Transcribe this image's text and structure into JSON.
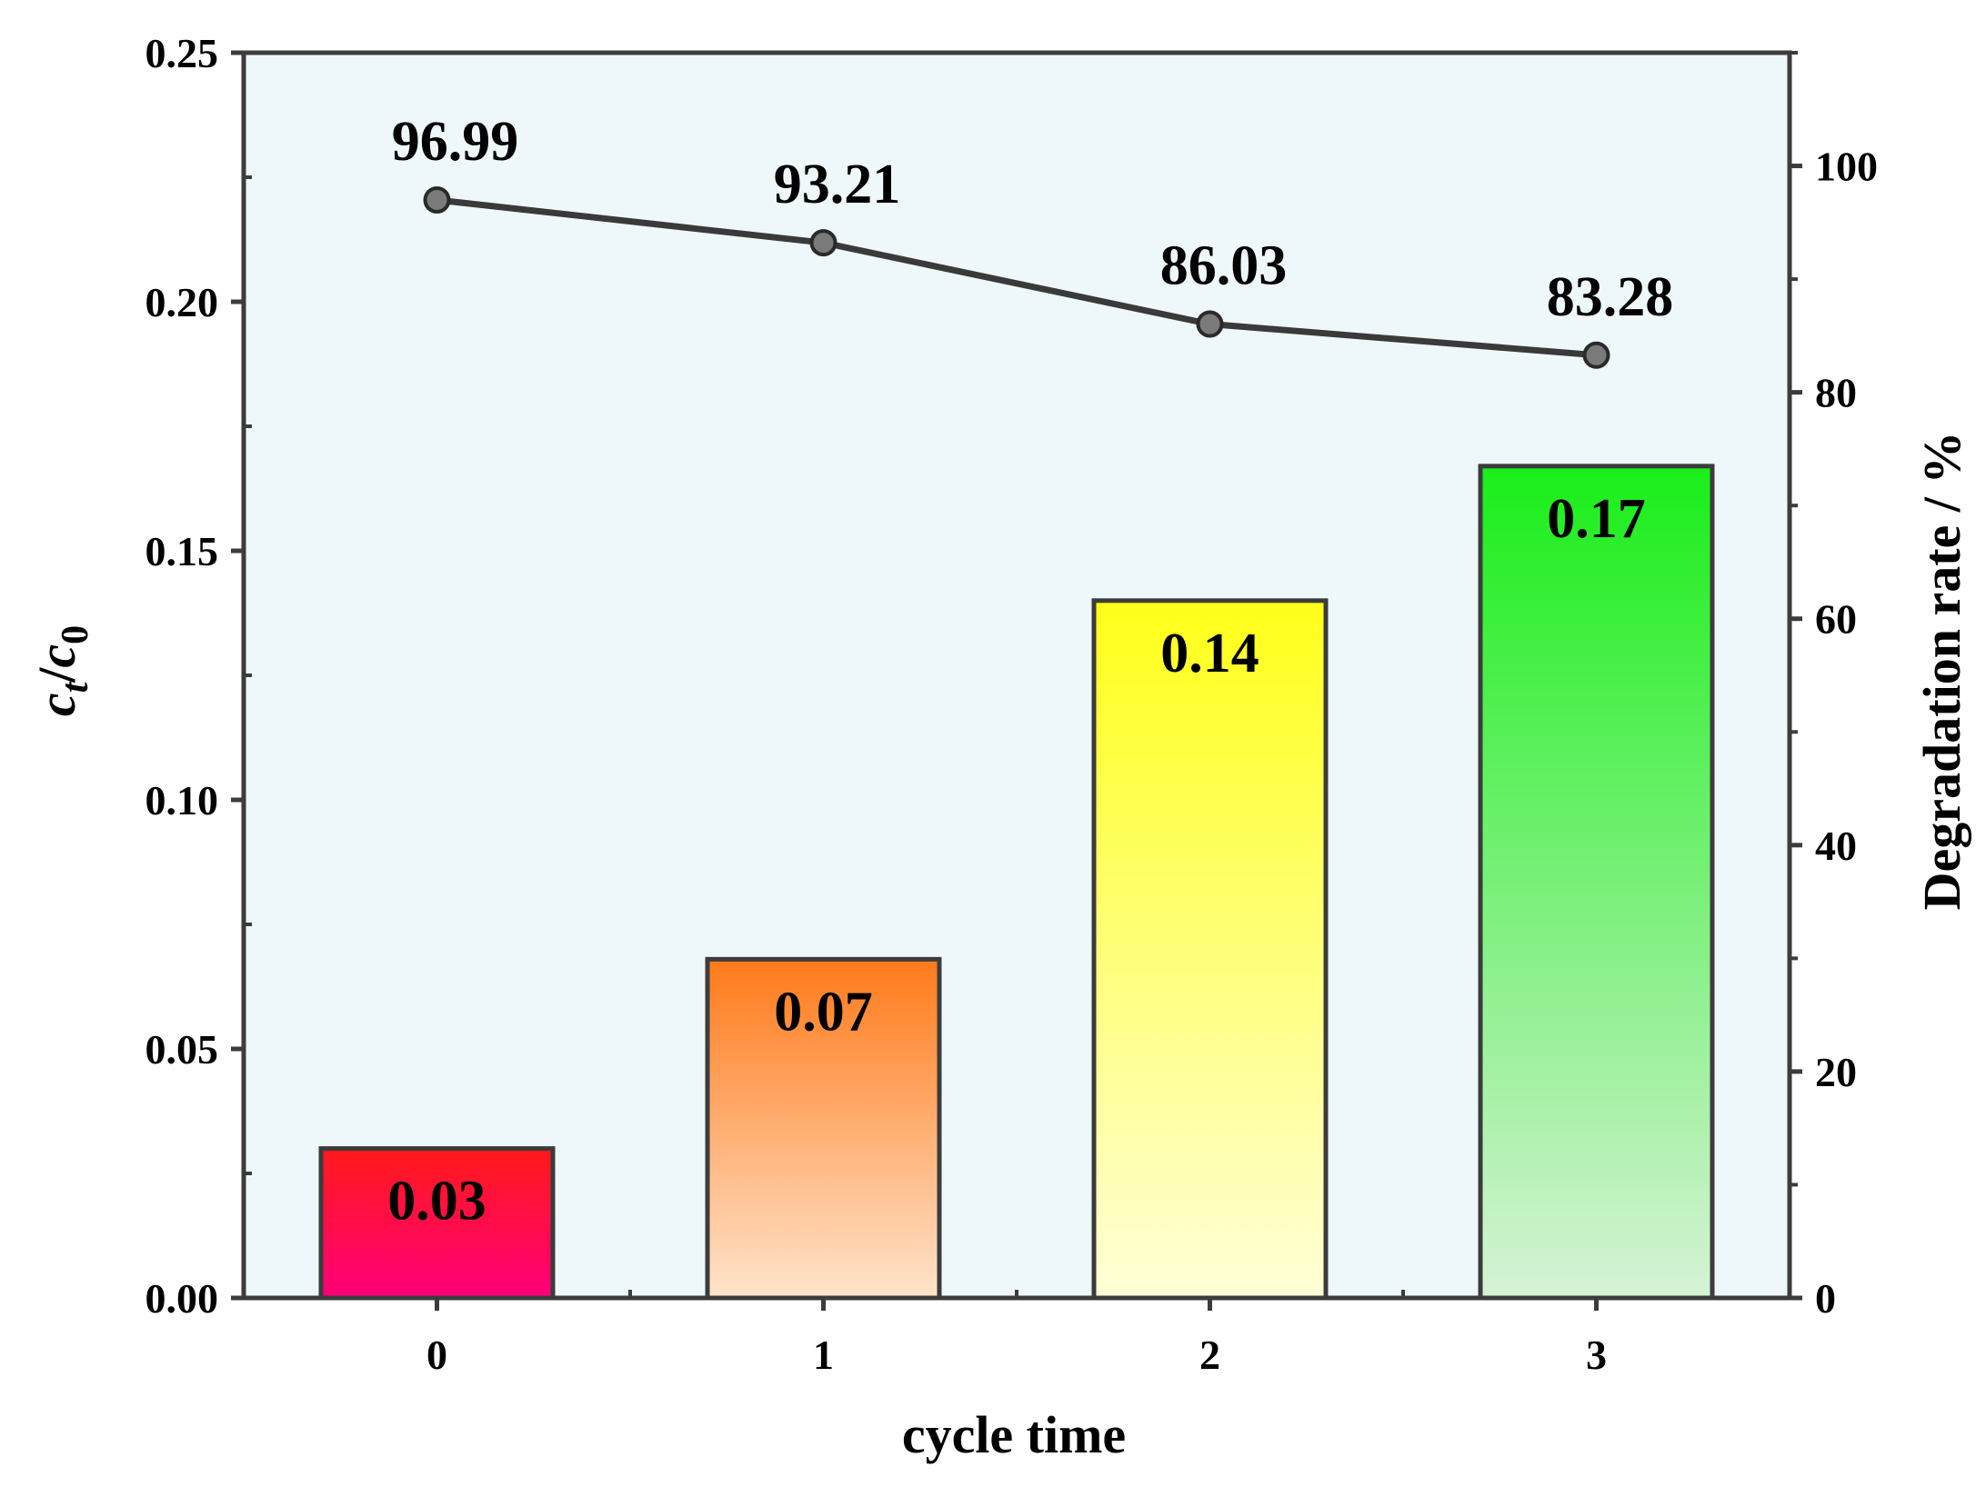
{
  "chart_data": {
    "type": "bar",
    "title": "",
    "xlabel": "cycle time",
    "ylabel": {
      "base": "c",
      "sub_t": "t",
      "slash": "/",
      "base2": "c",
      "sub_0": "0"
    },
    "y2label": "Degradation rate / %",
    "categories": [
      "0",
      "1",
      "2",
      "3"
    ],
    "ylim": [
      0,
      0.25
    ],
    "y2lim": [
      0,
      110
    ],
    "yticks": [
      "0.00",
      "0.05",
      "0.10",
      "0.15",
      "0.20",
      "0.25"
    ],
    "y2ticks": [
      "0",
      "20",
      "40",
      "60",
      "80",
      "100"
    ],
    "series": [
      {
        "name": "ct/c0",
        "type": "bar",
        "axis": "left",
        "values": [
          0.03,
          0.068,
          0.14,
          0.167
        ],
        "labels": [
          "0.03",
          "0.07",
          "0.14",
          "0.17"
        ],
        "colors": [
          [
            "#ff1a1a",
            "#ff007a"
          ],
          [
            "#ff7a1a",
            "#ffe4cc"
          ],
          [
            "#ffff1a",
            "#ffffd8"
          ],
          [
            "#1aee1a",
            "#d6f2d6"
          ]
        ]
      },
      {
        "name": "Degradation rate",
        "type": "line",
        "axis": "right",
        "values": [
          96.99,
          93.21,
          86.03,
          83.28
        ],
        "labels": [
          "96.99",
          "93.21",
          "86.03",
          "83.28"
        ],
        "color": "#3a3a3a"
      }
    ],
    "colors": {
      "plot_background": "#eef8fa",
      "frame": "#3c3c3c",
      "bar_edge": "#3c3c3c"
    }
  }
}
